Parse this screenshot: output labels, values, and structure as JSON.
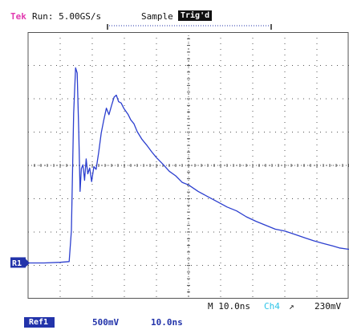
{
  "header": {
    "brand": "Tek",
    "run_status": "Run: 5.00GS/s",
    "acq_mode": "Sample",
    "trigger_status": "Trig'd"
  },
  "screen": {
    "ref_marker": "R1",
    "colors": {
      "grid": "#555555",
      "trace": "#2c3fcf",
      "ref": "#2233aa",
      "channel": "#2ec4e8"
    }
  },
  "chart_data": {
    "type": "line",
    "title": "",
    "xlabel": "",
    "ylabel": "",
    "x_units": "ns",
    "y_units": "mV",
    "xlim": [
      0,
      100
    ],
    "ylim": [
      -2050,
      2050
    ],
    "grid": true,
    "series": [
      {
        "name": "",
        "x": [
          0,
          5,
          10,
          12.8,
          13.5,
          14.2,
          14.8,
          15.3,
          15.8,
          16.2,
          16.6,
          17.1,
          17.6,
          18.1,
          18.6,
          19.2,
          19.8,
          20.5,
          21.2,
          22,
          22.8,
          23.6,
          24.4,
          25.2,
          26,
          26.8,
          27.5,
          28.2,
          29,
          29.8,
          30.5,
          31.2,
          32,
          33,
          34,
          35.5,
          37,
          38.5,
          40,
          42,
          44,
          46,
          48,
          50,
          53,
          56,
          59,
          62,
          65,
          68,
          71,
          74,
          77,
          80,
          83,
          86,
          89,
          92,
          95,
          97,
          100
        ],
        "y": [
          -1500,
          -1500,
          -1490,
          -1480,
          -1000,
          800,
          1500,
          1420,
          500,
          -400,
          -50,
          10,
          -230,
          100,
          -130,
          -40,
          -250,
          -20,
          -60,
          200,
          500,
          700,
          880,
          780,
          920,
          1050,
          1080,
          980,
          960,
          880,
          830,
          780,
          700,
          640,
          520,
          400,
          310,
          210,
          120,
          20,
          -90,
          -160,
          -260,
          -300,
          -400,
          -480,
          -560,
          -640,
          -700,
          -790,
          -860,
          -920,
          -980,
          -1010,
          -1060,
          -1110,
          -1160,
          -1200,
          -1240,
          -1270,
          -1290
        ]
      }
    ]
  },
  "footer": {
    "timebase": "M 10.0ns",
    "trigger_source": "Ch4",
    "trigger_slope": "↗",
    "trigger_level": "230mV",
    "ref_label": "Ref1",
    "ref_volts_div": "500mV",
    "ref_time_div": "10.0ns"
  }
}
